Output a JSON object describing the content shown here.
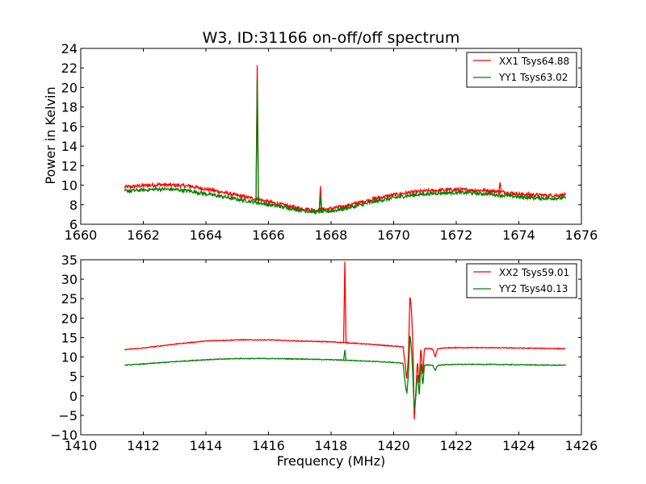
{
  "chart_data": [
    {
      "type": "line",
      "title": "W3, ID:31166 on-off/off spectrum",
      "xlabel": "",
      "ylabel": "Power in Kelvin",
      "xlim": [
        1660,
        1676
      ],
      "ylim": [
        6,
        24
      ],
      "xticks": [
        "1660",
        "1662",
        "1664",
        "1666",
        "1668",
        "1670",
        "1672",
        "1674",
        "1676"
      ],
      "yticks": [
        "6",
        "8",
        "10",
        "12",
        "14",
        "16",
        "18",
        "20",
        "22",
        "24"
      ],
      "grid": false,
      "legend_position": "top-right",
      "series": [
        {
          "name": "XX1 Tsys64.88",
          "color": "#ff0000",
          "noise": 0.18,
          "points": [
            [
              1661.4,
              9.8
            ],
            [
              1662.0,
              9.95
            ],
            [
              1662.5,
              10.05
            ],
            [
              1663.0,
              10.0
            ],
            [
              1663.5,
              9.9
            ],
            [
              1664.0,
              9.6
            ],
            [
              1664.5,
              9.3
            ],
            [
              1665.0,
              8.95
            ],
            [
              1665.5,
              8.65
            ],
            [
              1666.0,
              8.3
            ],
            [
              1666.5,
              7.95
            ],
            [
              1667.0,
              7.65
            ],
            [
              1667.5,
              7.45
            ],
            [
              1668.0,
              7.6
            ],
            [
              1668.5,
              7.9
            ],
            [
              1669.0,
              8.3
            ],
            [
              1669.5,
              8.7
            ],
            [
              1670.0,
              9.0
            ],
            [
              1670.5,
              9.25
            ],
            [
              1671.0,
              9.4
            ],
            [
              1671.5,
              9.5
            ],
            [
              1672.0,
              9.55
            ],
            [
              1672.5,
              9.5
            ],
            [
              1673.0,
              9.45
            ],
            [
              1673.5,
              9.3
            ],
            [
              1674.0,
              9.1
            ],
            [
              1674.5,
              9.0
            ],
            [
              1675.0,
              8.95
            ],
            [
              1675.5,
              9.0
            ]
          ],
          "peaks": [
            [
              1665.64,
              22.3
            ],
            [
              1667.66,
              9.9
            ],
            [
              1673.4,
              10.3
            ]
          ]
        },
        {
          "name": "YY1 Tsys63.02",
          "color": "#008000",
          "noise": 0.18,
          "points": [
            [
              1661.4,
              9.4
            ],
            [
              1662.0,
              9.5
            ],
            [
              1662.5,
              9.6
            ],
            [
              1663.0,
              9.55
            ],
            [
              1663.5,
              9.4
            ],
            [
              1664.0,
              9.1
            ],
            [
              1664.5,
              8.85
            ],
            [
              1665.0,
              8.55
            ],
            [
              1665.5,
              8.3
            ],
            [
              1666.0,
              8.0
            ],
            [
              1666.5,
              7.75
            ],
            [
              1667.0,
              7.45
            ],
            [
              1667.5,
              7.25
            ],
            [
              1668.0,
              7.35
            ],
            [
              1668.5,
              7.65
            ],
            [
              1669.0,
              8.0
            ],
            [
              1669.5,
              8.4
            ],
            [
              1670.0,
              8.7
            ],
            [
              1670.5,
              8.95
            ],
            [
              1671.0,
              9.1
            ],
            [
              1671.5,
              9.2
            ],
            [
              1672.0,
              9.25
            ],
            [
              1672.5,
              9.2
            ],
            [
              1673.0,
              9.1
            ],
            [
              1673.5,
              8.95
            ],
            [
              1674.0,
              8.8
            ],
            [
              1674.5,
              8.7
            ],
            [
              1675.0,
              8.65
            ],
            [
              1675.5,
              8.7
            ]
          ],
          "peaks": [
            [
              1665.64,
              20.7
            ],
            [
              1667.66,
              8.9
            ]
          ]
        }
      ]
    },
    {
      "type": "line",
      "title": "",
      "xlabel": "Frequency (MHz)",
      "ylabel": "",
      "xlim": [
        1410,
        1426
      ],
      "ylim": [
        -10,
        35
      ],
      "xticks": [
        "1410",
        "1412",
        "1414",
        "1416",
        "1418",
        "1420",
        "1422",
        "1424",
        "1426"
      ],
      "yticks": [
        "−10",
        "−5",
        "0",
        "5",
        "10",
        "15",
        "20",
        "25",
        "30",
        "35"
      ],
      "grid": false,
      "legend_position": "top-right",
      "series": [
        {
          "name": "XX2 Tsys59.01",
          "color": "#ff0000",
          "noise": 0.1,
          "points": [
            [
              1411.4,
              11.9
            ],
            [
              1412.0,
              12.3
            ],
            [
              1413.0,
              13.3
            ],
            [
              1414.0,
              14.1
            ],
            [
              1415.0,
              14.4
            ],
            [
              1416.0,
              14.4
            ],
            [
              1417.0,
              14.1
            ],
            [
              1418.0,
              13.9
            ],
            [
              1419.0,
              13.4
            ],
            [
              1420.0,
              12.8
            ],
            [
              1420.3,
              12.6
            ],
            [
              1420.37,
              8.0
            ],
            [
              1420.42,
              4.0
            ],
            [
              1420.47,
              10.0
            ],
            [
              1420.52,
              26.0
            ],
            [
              1420.57,
              22.0
            ],
            [
              1420.62,
              12.0
            ],
            [
              1420.66,
              -6.5
            ],
            [
              1420.7,
              0.0
            ],
            [
              1420.76,
              9.0
            ],
            [
              1420.82,
              3.0
            ],
            [
              1420.87,
              13.0
            ],
            [
              1420.93,
              5.0
            ],
            [
              1420.98,
              12.0
            ],
            [
              1421.05,
              12.2
            ],
            [
              1421.25,
              12.0
            ],
            [
              1421.33,
              10.0
            ],
            [
              1421.4,
              12.0
            ],
            [
              1421.6,
              12.3
            ],
            [
              1422.0,
              12.4
            ],
            [
              1423.0,
              12.4
            ],
            [
              1424.0,
              12.3
            ],
            [
              1425.0,
              12.2
            ],
            [
              1425.5,
              12.1
            ]
          ],
          "peaks": [
            [
              1418.44,
              34.5
            ]
          ]
        },
        {
          "name": "YY2 Tsys40.13",
          "color": "#008000",
          "noise": 0.1,
          "points": [
            [
              1411.4,
              7.9
            ],
            [
              1412.0,
              8.2
            ],
            [
              1413.0,
              8.8
            ],
            [
              1414.0,
              9.3
            ],
            [
              1415.0,
              9.6
            ],
            [
              1416.0,
              9.6
            ],
            [
              1417.0,
              9.5
            ],
            [
              1418.0,
              9.3
            ],
            [
              1419.0,
              9.0
            ],
            [
              1420.0,
              8.6
            ],
            [
              1420.3,
              8.4
            ],
            [
              1420.37,
              3.0
            ],
            [
              1420.42,
              0.5
            ],
            [
              1420.47,
              5.0
            ],
            [
              1420.52,
              16.0
            ],
            [
              1420.57,
              12.0
            ],
            [
              1420.62,
              4.0
            ],
            [
              1420.66,
              -3.5
            ],
            [
              1420.7,
              -1.0
            ],
            [
              1420.76,
              6.0
            ],
            [
              1420.82,
              0.0
            ],
            [
              1420.87,
              9.0
            ],
            [
              1420.93,
              2.5
            ],
            [
              1420.98,
              7.8
            ],
            [
              1421.05,
              8.0
            ],
            [
              1421.25,
              7.8
            ],
            [
              1421.33,
              6.6
            ],
            [
              1421.4,
              7.8
            ],
            [
              1421.6,
              8.0
            ],
            [
              1422.0,
              8.1
            ],
            [
              1423.0,
              8.1
            ],
            [
              1424.0,
              8.0
            ],
            [
              1425.0,
              7.9
            ],
            [
              1425.5,
              7.9
            ]
          ],
          "peaks": [
            [
              1418.44,
              11.8
            ]
          ]
        }
      ]
    }
  ]
}
